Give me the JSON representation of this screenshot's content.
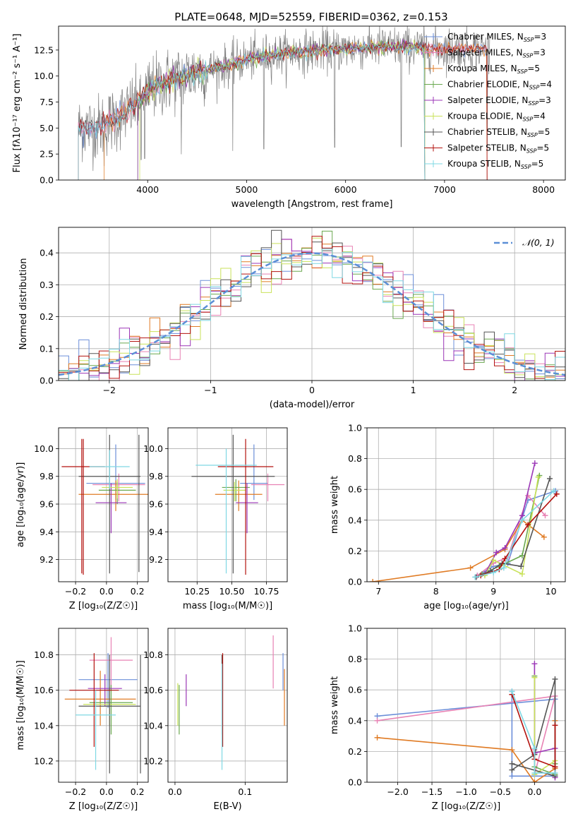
{
  "figure_title": "PLATE=0648, MJD=52559, FIBERID=0362, z=0.153",
  "colors": {
    "Chabrier MILES": "#6c8fd9",
    "Salpeter MILES": "#e882b4",
    "Kroupa MILES": "#e07b24",
    "Chabrier ELODIE": "#6aa84f",
    "Salpeter ELODIE": "#9b36b7",
    "Kroupa ELODIE": "#c9e25a",
    "Chabrier STELIB": "#555555",
    "Salpeter STELIB": "#b3120e",
    "Kroupa STELIB": "#7fd8e3",
    "data": "#808080",
    "gaussian": "#5b8fd6"
  },
  "series_names": [
    "Chabrier MILES",
    "Salpeter MILES",
    "Kroupa MILES",
    "Chabrier ELODIE",
    "Salpeter ELODIE",
    "Kroupa ELODIE",
    "Chabrier STELIB",
    "Salpeter STELIB",
    "Kroupa STELIB"
  ],
  "chart_data": [
    {
      "id": "spectrum",
      "type": "line",
      "title": "PLATE=0648, MJD=52559, FIBERID=0362, z=0.153",
      "xlabel": "wavelength [Angstrom, rest frame]",
      "ylabel": "Flux [fλ10⁻¹⁷ erg cm⁻² s⁻¹ A⁻¹]",
      "xlim": [
        3100,
        8220
      ],
      "ylim": [
        0,
        14.8
      ],
      "xticks": [
        4000,
        5000,
        6000,
        7000,
        8000
      ],
      "yticks": [
        0.0,
        2.5,
        5.0,
        7.5,
        10.0,
        12.5
      ],
      "legend_position": "top-right",
      "legend": [
        {
          "label": "Chabrier MILES, N",
          "sub": "SSP",
          "suffix": "=3"
        },
        {
          "label": "Salpeter MILES, N",
          "sub": "SSP",
          "suffix": "=3"
        },
        {
          "label": "Kroupa MILES, N",
          "sub": "SSP",
          "suffix": "=5"
        },
        {
          "label": "Chabrier ELODIE, N",
          "sub": "SSP",
          "suffix": "=4"
        },
        {
          "label": "Salpeter ELODIE, N",
          "sub": "SSP",
          "suffix": "=3"
        },
        {
          "label": "Kroupa ELODIE, N",
          "sub": "SSP",
          "suffix": "=4"
        },
        {
          "label": "Chabrier STELIB, N",
          "sub": "SSP",
          "suffix": "=5"
        },
        {
          "label": "Salpeter STELIB, N",
          "sub": "SSP",
          "suffix": "=5"
        },
        {
          "label": "Kroupa STELIB, N",
          "sub": "SSP",
          "suffix": "=5"
        }
      ],
      "continuum": {
        "x": [
          3300,
          3500,
          3700,
          3900,
          4000,
          4200,
          4500,
          4800,
          5000,
          5200,
          5500,
          5800,
          6000,
          6300,
          6600,
          6900,
          7200,
          7500,
          7800,
          8000,
          8200
        ],
        "y": [
          5.0,
          5.1,
          6.0,
          7.4,
          8.6,
          9.5,
          10.4,
          11.0,
          11.6,
          12.0,
          12.3,
          12.5,
          12.6,
          12.8,
          12.8,
          12.7,
          12.6,
          12.6,
          12.5,
          12.4,
          12.3
        ]
      }
    },
    {
      "id": "residuals",
      "type": "line",
      "xlabel": "(data-model)/error",
      "ylabel": "Normed distribution",
      "xlim": [
        -2.5,
        2.5
      ],
      "ylim": [
        0,
        0.48
      ],
      "xticks": [
        -2,
        -1,
        0,
        1,
        2
      ],
      "yticks": [
        0.0,
        0.1,
        0.2,
        0.3,
        0.4
      ],
      "legend_position": "top-right",
      "gaussian_label": "𝒩(0, 1)",
      "bin_width": 0.1
    },
    {
      "id": "age-vs-Z",
      "type": "scatter",
      "xlabel": "Z [log₁₀(Z/Z☉)]",
      "ylabel": "age  [log₁₀(age/yr)]",
      "xlim": [
        -0.31,
        0.27
      ],
      "ylim": [
        9.04,
        10.15
      ],
      "xticks": [
        -0.2,
        0.0,
        0.2
      ],
      "yticks": [
        9.2,
        9.4,
        9.6,
        9.8,
        10.0
      ],
      "points": [
        {
          "s": 0,
          "x": 0.06,
          "y": 9.75,
          "xerr": 0.19,
          "yerr": [
            0.12,
            0.28
          ]
        },
        {
          "s": 1,
          "x": 0.08,
          "y": 9.74,
          "xerr": 0.17,
          "yerr": [
            0.12,
            0.08
          ]
        },
        {
          "s": 2,
          "x": 0.06,
          "y": 9.67,
          "xerr": 0.24,
          "yerr": [
            0.12,
            0.1
          ]
        },
        {
          "s": 3,
          "x": 0.07,
          "y": 9.7,
          "xerr": 0.12,
          "yerr": [
            0.1,
            0.06
          ]
        },
        {
          "s": 4,
          "x": 0.03,
          "y": 9.61,
          "xerr": 0.1,
          "yerr": [
            0.22,
            0.14
          ]
        },
        {
          "s": 5,
          "x": 0.07,
          "y": 9.72,
          "xerr": 0.1,
          "yerr": [
            0.08,
            0.06
          ]
        },
        {
          "s": 6,
          "x": 0.02,
          "y": 9.8,
          "xerr": 0.2,
          "yerr": [
            0.7,
            0.3
          ]
        },
        {
          "s": 7,
          "x": -0.15,
          "y": 9.87,
          "xerr": 0.14,
          "yerr": [
            0.78,
            0.2
          ]
        },
        {
          "s": 8,
          "x": 0.02,
          "y": 9.87,
          "xerr": 0.13,
          "yerr": [
            0.16,
            0.12
          ]
        }
      ],
      "extra_lines": [
        {
          "s": 6,
          "x": 0.21,
          "y0": 9.11,
          "y1": 10.1
        },
        {
          "s": 7,
          "x": -0.16,
          "y0": 9.1,
          "y1": 10.07
        }
      ]
    },
    {
      "id": "age-vs-mass",
      "type": "scatter",
      "xlabel": "mass [log₁₀(M/M☉)]",
      "ylabel": "",
      "xlim": [
        10.04,
        10.9
      ],
      "ylim": [
        9.04,
        10.15
      ],
      "xticks": [
        10.25,
        10.5,
        10.75
      ],
      "yticks": [
        9.2,
        9.4,
        9.6,
        9.8,
        10.0
      ],
      "tick_labels_x": [
        "10.25",
        "10.50",
        "10.75"
      ],
      "points": [
        {
          "s": 0,
          "x": 10.66,
          "y": 9.75,
          "xerr": 0.1,
          "yerr": [
            0.12,
            0.28
          ]
        },
        {
          "s": 1,
          "x": 10.76,
          "y": 9.74,
          "xerr": 0.12,
          "yerr": [
            0.12,
            0.08
          ]
        },
        {
          "s": 2,
          "x": 10.55,
          "y": 9.67,
          "xerr": 0.17,
          "yerr": [
            0.12,
            0.1
          ]
        },
        {
          "s": 3,
          "x": 10.53,
          "y": 9.72,
          "xerr": 0.1,
          "yerr": [
            0.1,
            0.06
          ]
        },
        {
          "s": 4,
          "x": 10.61,
          "y": 9.61,
          "xerr": 0.08,
          "yerr": [
            0.22,
            0.14
          ]
        },
        {
          "s": 5,
          "x": 10.52,
          "y": 9.7,
          "xerr": 0.08,
          "yerr": [
            0.08,
            0.06
          ]
        },
        {
          "s": 6,
          "x": 10.51,
          "y": 9.8,
          "xerr": 0.3,
          "yerr": [
            0.7,
            0.3
          ]
        },
        {
          "s": 7,
          "x": 10.6,
          "y": 9.87,
          "xerr": 0.2,
          "yerr": [
            0.78,
            0.2
          ]
        },
        {
          "s": 8,
          "x": 10.46,
          "y": 9.88,
          "xerr": 0.22,
          "yerr": [
            0.78,
            0.12
          ]
        }
      ],
      "extra_lines": []
    },
    {
      "id": "mass-weight-vs-age",
      "type": "line",
      "xlabel": "age  [log₁₀(age/yr)]",
      "ylabel": "mass weight",
      "xlim": [
        6.8,
        10.25
      ],
      "ylim": [
        0,
        1.0
      ],
      "xticks": [
        7,
        8,
        9,
        10
      ],
      "yticks": [
        0.0,
        0.2,
        0.4,
        0.6,
        0.8,
        1.0
      ],
      "series": [
        {
          "s": 0,
          "x": [
            8.72,
            9.0,
            9.25,
            9.6,
            10.08
          ],
          "y": [
            0.04,
            0.1,
            0.12,
            0.53,
            0.59
          ]
        },
        {
          "s": 1,
          "x": [
            8.72,
            9.0,
            9.25,
            9.6,
            9.9
          ],
          "y": [
            0.04,
            0.12,
            0.16,
            0.56,
            0.43
          ]
        },
        {
          "s": 2,
          "x": [
            6.9,
            8.6,
            9.2,
            9.5,
            9.88
          ],
          "y": [
            0.0,
            0.09,
            0.21,
            0.4,
            0.29
          ]
        },
        {
          "s": 3,
          "x": [
            8.8,
            9.1,
            9.5,
            9.8
          ],
          "y": [
            0.05,
            0.1,
            0.17,
            0.69
          ]
        },
        {
          "s": 4,
          "x": [
            8.85,
            9.05,
            9.2,
            9.5,
            9.72
          ],
          "y": [
            0.05,
            0.19,
            0.22,
            0.43,
            0.77
          ]
        },
        {
          "s": 5,
          "x": [
            8.85,
            9.0,
            9.5,
            9.78
          ],
          "y": [
            0.04,
            0.14,
            0.05,
            0.68
          ]
        },
        {
          "s": 6,
          "x": [
            8.7,
            8.95,
            9.15,
            9.48,
            9.98
          ],
          "y": [
            0.03,
            0.07,
            0.12,
            0.1,
            0.67
          ]
        },
        {
          "s": 7,
          "x": [
            8.78,
            9.1,
            9.2,
            9.6,
            10.1
          ],
          "y": [
            0.04,
            0.08,
            0.15,
            0.37,
            0.57
          ]
        },
        {
          "s": 8,
          "x": [
            8.68,
            9.0,
            9.18,
            9.5,
            10.05
          ],
          "y": [
            0.03,
            0.06,
            0.09,
            0.4,
            0.59
          ]
        }
      ]
    },
    {
      "id": "mass-vs-Z",
      "type": "scatter",
      "xlabel": "Z [log₁₀(Z/Z☉)]",
      "ylabel": "mass [log₁₀(M/M☉)]",
      "xlim": [
        -0.31,
        0.27
      ],
      "ylim": [
        10.08,
        10.95
      ],
      "xticks": [
        -0.2,
        0.0,
        0.2
      ],
      "yticks": [
        10.2,
        10.4,
        10.6,
        10.8
      ],
      "points": [
        {
          "s": 0,
          "x": 0.01,
          "y": 10.66,
          "xerr": 0.19,
          "yerr": [
            0.16,
            0.15
          ]
        },
        {
          "s": 1,
          "x": 0.03,
          "y": 10.77,
          "xerr": 0.14,
          "yerr": [
            0.16,
            0.13
          ]
        },
        {
          "s": 2,
          "x": -0.04,
          "y": 10.55,
          "xerr": 0.23,
          "yerr": [
            0.15,
            0.16
          ]
        },
        {
          "s": 3,
          "x": 0.03,
          "y": 10.53,
          "xerr": 0.14,
          "yerr": [
            0.18,
            0.1
          ]
        },
        {
          "s": 4,
          "x": -0.01,
          "y": 10.61,
          "xerr": 0.11,
          "yerr": [
            0.1,
            0.08
          ]
        },
        {
          "s": 5,
          "x": 0.02,
          "y": 10.52,
          "xerr": 0.17,
          "yerr": [
            0.12,
            0.1
          ]
        },
        {
          "s": 6,
          "x": 0.02,
          "y": 10.51,
          "xerr": 0.2,
          "yerr": [
            0.38,
            0.29
          ]
        },
        {
          "s": 7,
          "x": -0.08,
          "y": 10.6,
          "xerr": 0.16,
          "yerr": [
            0.32,
            0.21
          ]
        },
        {
          "s": 8,
          "x": -0.07,
          "y": 10.46,
          "xerr": 0.13,
          "yerr": [
            0.31,
            0.14
          ]
        }
      ],
      "extra_lines": [
        {
          "s": 6,
          "x": 0.22,
          "y0": 10.13,
          "y1": 10.8
        }
      ]
    },
    {
      "id": "mass-vs-EBV",
      "type": "scatter",
      "xlabel": "E(B-V)",
      "ylabel": "",
      "xlim": [
        -0.01,
        0.16
      ],
      "ylim": [
        10.08,
        10.95
      ],
      "xticks": [
        0.0,
        0.1
      ],
      "yticks": [
        10.2,
        10.4,
        10.6,
        10.8
      ],
      "points": [
        {
          "s": 0,
          "x": 0.154,
          "y": 10.66,
          "xerr": 0,
          "yerr": [
            0.06,
            0.15
          ]
        },
        {
          "s": 1,
          "x": 0.14,
          "y": 10.77,
          "xerr": 0,
          "yerr": [
            0.16,
            0.14
          ]
        },
        {
          "s": 2,
          "x": 0.156,
          "y": 10.55,
          "xerr": 0,
          "yerr": [
            0.15,
            0.17
          ]
        },
        {
          "s": 3,
          "x": 0.006,
          "y": 10.53,
          "xerr": 0,
          "yerr": [
            0.18,
            0.1
          ]
        },
        {
          "s": 4,
          "x": 0.016,
          "y": 10.61,
          "xerr": 0,
          "yerr": [
            0.1,
            0.08
          ]
        },
        {
          "s": 5,
          "x": 0.004,
          "y": 10.52,
          "xerr": 0,
          "yerr": [
            0.12,
            0.12
          ]
        },
        {
          "s": 6,
          "x": 0.067,
          "y": 10.51,
          "xerr": 0,
          "yerr": [
            0.16,
            0.29
          ]
        },
        {
          "s": 7,
          "x": 0.068,
          "y": 10.6,
          "xerr": 0,
          "yerr": [
            0.32,
            0.21
          ]
        },
        {
          "s": 8,
          "x": 0.067,
          "y": 10.46,
          "xerr": 0,
          "yerr": [
            0.31,
            0.29
          ]
        }
      ],
      "extra_lines": []
    },
    {
      "id": "mass-weight-vs-Z",
      "type": "line",
      "xlabel": "Z [log₁₀(Z/Z☉)]",
      "ylabel": "mass weight",
      "xlim": [
        -2.45,
        0.45
      ],
      "ylim": [
        0,
        1.0
      ],
      "xticks": [
        -2.0,
        -1.5,
        -1.0,
        -0.5,
        0.0
      ],
      "yticks": [
        0.0,
        0.2,
        0.4,
        0.6,
        0.8,
        1.0
      ],
      "series": [
        {
          "s": 0,
          "x": [
            -2.3,
            0.3,
            0.3,
            -0.33,
            -0.33
          ],
          "y": [
            0.43,
            0.54,
            0.04,
            0.04,
            0.59
          ]
        },
        {
          "s": 1,
          "x": [
            -2.3,
            0.3,
            0.0,
            0.0
          ],
          "y": [
            0.4,
            0.56,
            0.05,
            0.21
          ]
        },
        {
          "s": 2,
          "x": [
            -2.3,
            -0.33,
            0.0,
            0.3,
            0.3
          ],
          "y": [
            0.29,
            0.21,
            0.0,
            0.09,
            0.4
          ]
        },
        {
          "s": 3,
          "x": [
            0.0,
            0.0,
            0.3,
            0.3
          ],
          "y": [
            0.69,
            0.1,
            0.05,
            0.12
          ]
        },
        {
          "s": 4,
          "x": [
            0.0,
            0.0,
            0.3,
            0.3
          ],
          "y": [
            0.77,
            0.19,
            0.22,
            0.03
          ]
        },
        {
          "s": 5,
          "x": [
            0.0,
            0.0,
            0.3
          ],
          "y": [
            0.68,
            0.05,
            0.14
          ]
        },
        {
          "s": 6,
          "x": [
            -0.33,
            0.0,
            0.3,
            0.3,
            -0.33
          ],
          "y": [
            0.08,
            0.18,
            0.67,
            0.04,
            0.12
          ]
        },
        {
          "s": 7,
          "x": [
            -0.33,
            0.0,
            0.3,
            0.3
          ],
          "y": [
            0.57,
            0.15,
            0.1,
            0.37
          ]
        },
        {
          "s": 8,
          "x": [
            -0.33,
            0.0,
            0.0,
            0.3
          ],
          "y": [
            0.59,
            0.22,
            0.06,
            0.06
          ]
        }
      ]
    }
  ]
}
